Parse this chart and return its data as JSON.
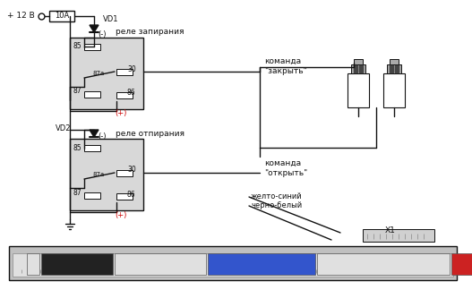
{
  "title": "",
  "bg_color": "#ffffff",
  "relay1_label": "реле запирания",
  "relay2_label": "реле отпирания",
  "vd1_label": "VD1",
  "vd2_label": "VD2",
  "fuse_label": "10A",
  "power_label": "+ 12 В",
  "cmd1_label": "команда\n\"закрыть\"",
  "cmd2_label": "команда\n\"открыть\"",
  "wire1_label": "желто-синий",
  "wire2_label": "черно-белый",
  "x1_label": "X1",
  "relay_box_color": "#cccccc",
  "connector_bg": "#d0d0d0",
  "connector_border": "#555555",
  "plug_white": "#e8e8e8",
  "plug_black": "#222222",
  "plug_blue": "#3355cc",
  "plug_red": "#cc2222",
  "line_color": "#111111",
  "text_color": "#111111",
  "red_text": "#cc0000"
}
